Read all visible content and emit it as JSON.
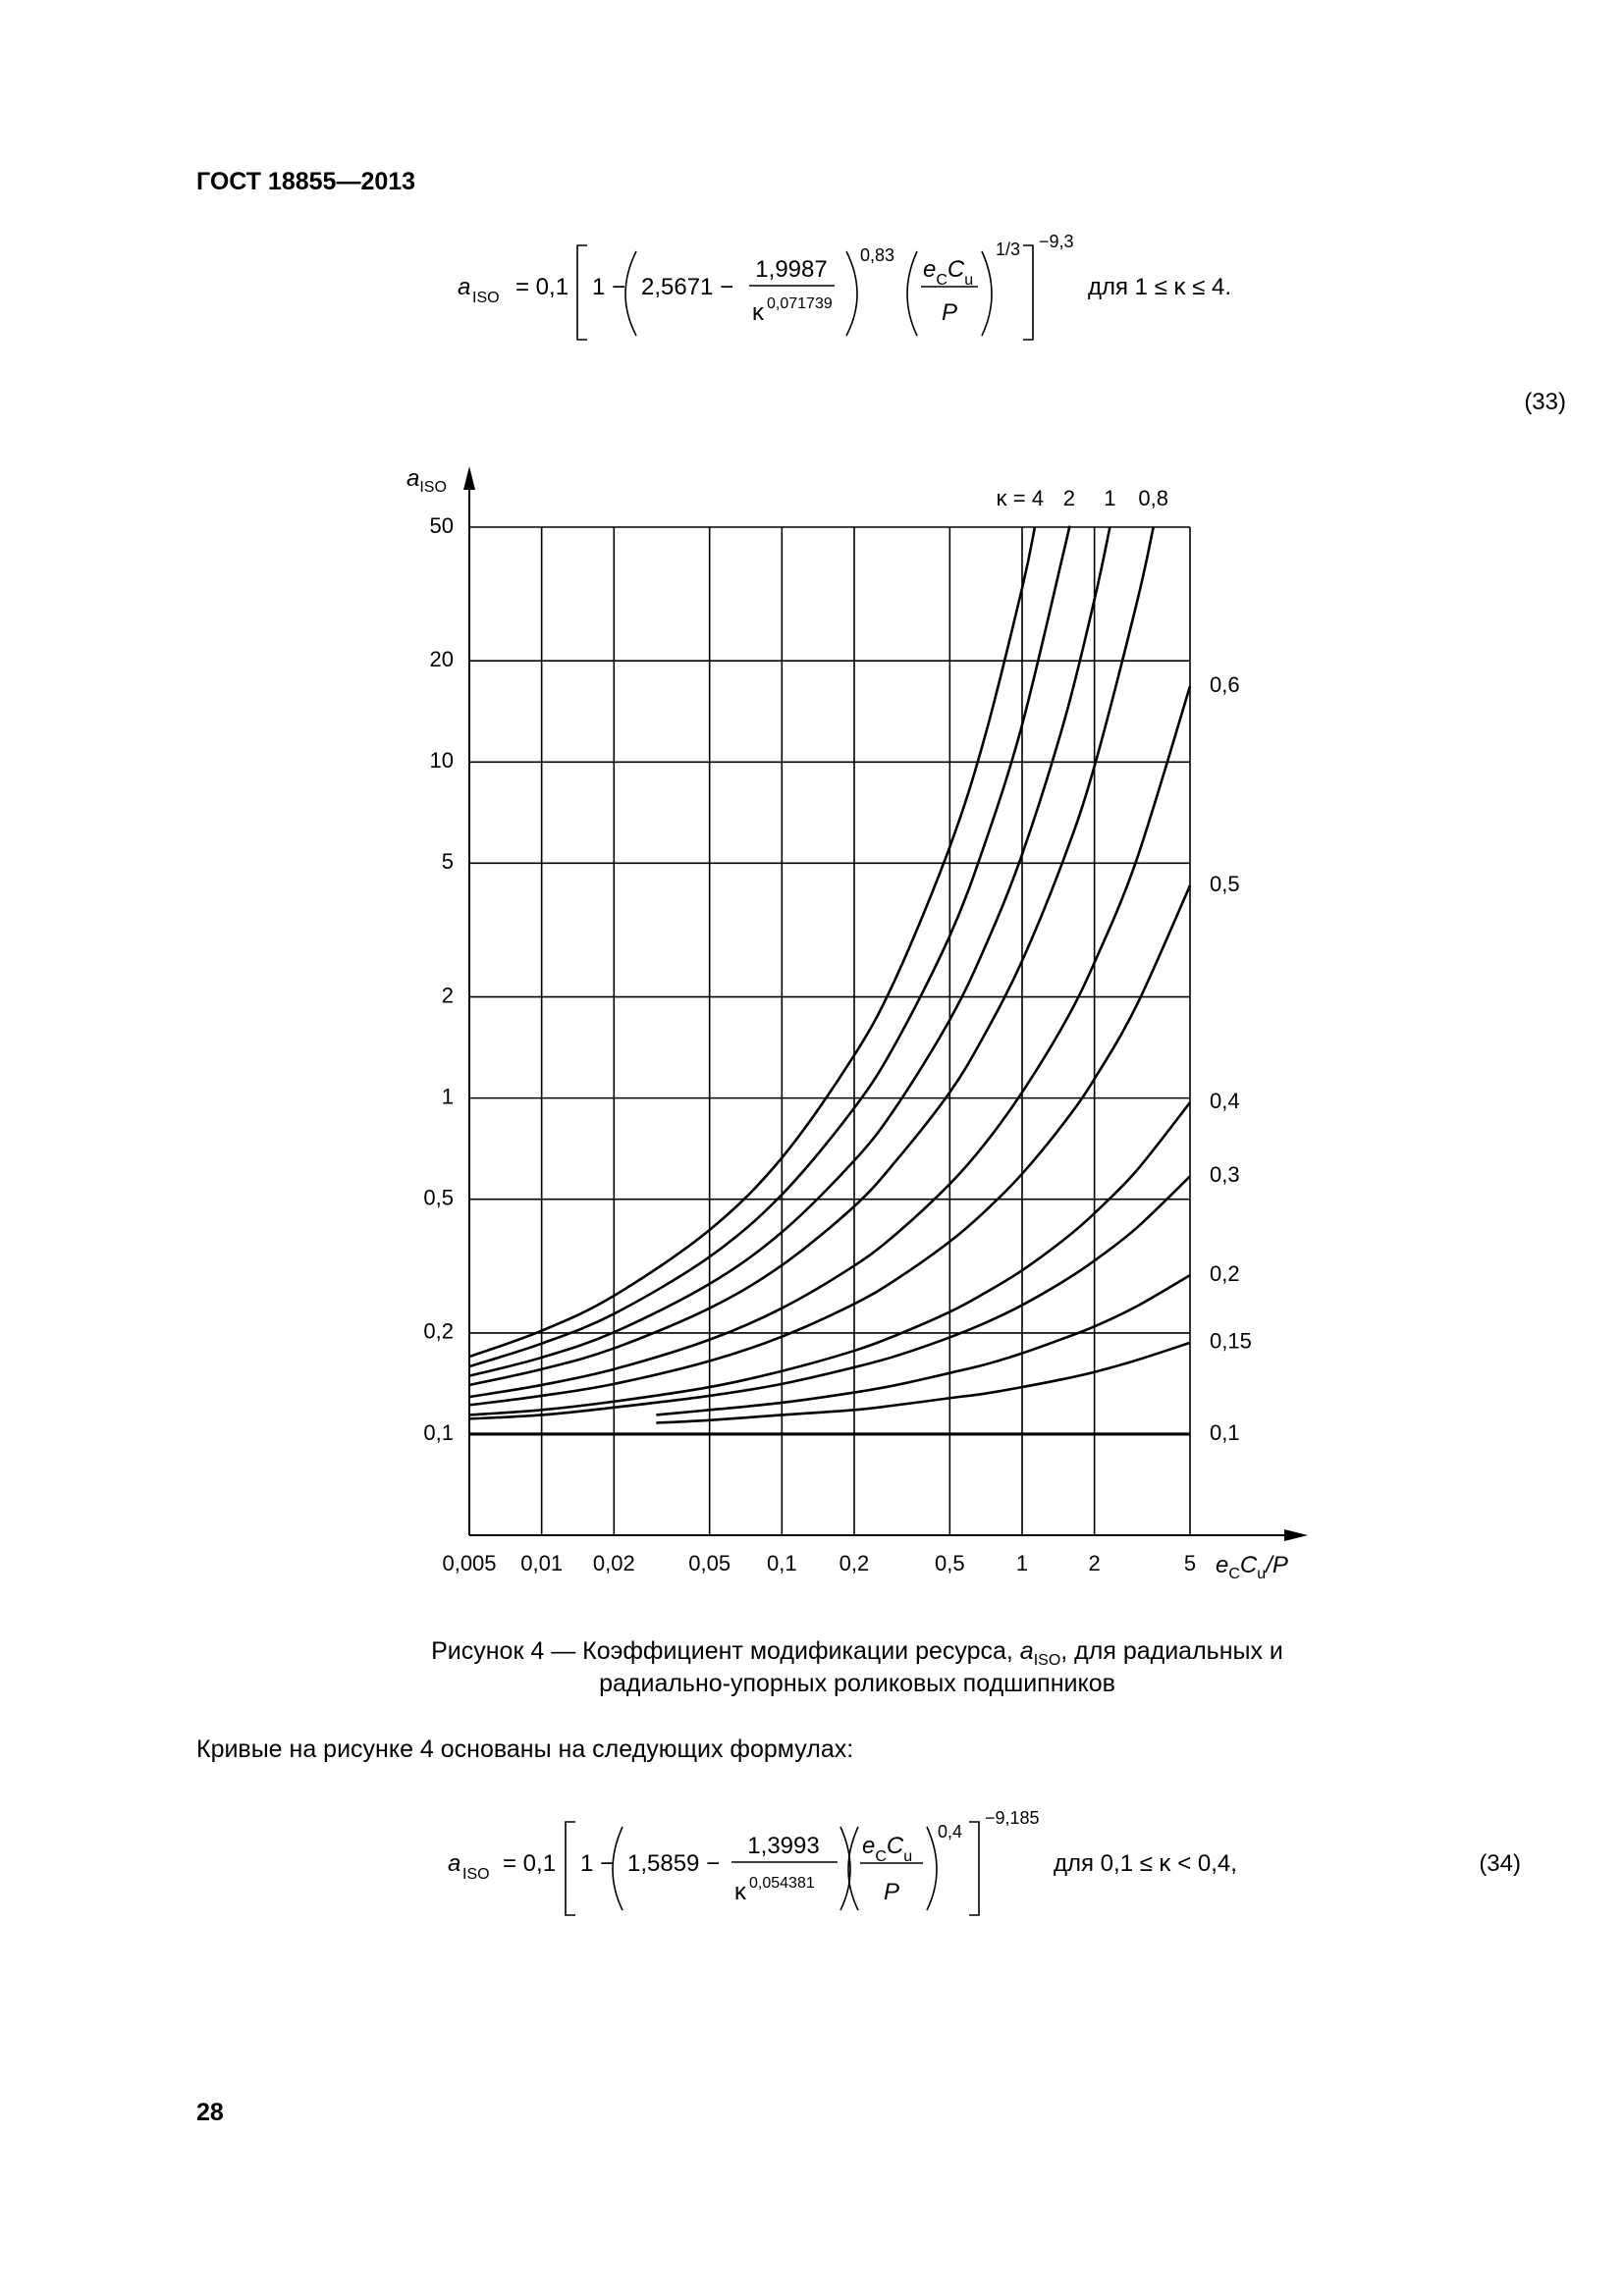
{
  "header": {
    "title": "ГОСТ 18855—2013"
  },
  "formula_33": {
    "lhs": "a",
    "lhs_sub": "ISO",
    "eq": "= 0,1",
    "one_minus": "1 −",
    "const": "2,5671 −",
    "num": "1,9987",
    "den": "κ",
    "den_exp": "0,071739",
    "exp1": "0,83",
    "frac_num": [
      "e",
      "C",
      "C",
      "u"
    ],
    "frac_den": "P",
    "exp2": "1/3",
    "exp_outer": "−9,3",
    "cond": "для  1 ≤ κ ≤ 4.",
    "number": "(33)"
  },
  "chart_data": {
    "type": "line",
    "xlabel": [
      "e",
      "C",
      "C",
      "u",
      "/P"
    ],
    "ylabel": [
      "a",
      "ISO"
    ],
    "log_x": true,
    "log_y": true,
    "grid": true,
    "xlim": [
      0.005,
      5
    ],
    "ylim": [
      0.05,
      50
    ],
    "xticks": [
      {
        "value": 0.005,
        "label": "0,005"
      },
      {
        "value": 0.01,
        "label": "0,01"
      },
      {
        "value": 0.02,
        "label": "0,02"
      },
      {
        "value": 0.05,
        "label": "0,05"
      },
      {
        "value": 0.1,
        "label": "0,1"
      },
      {
        "value": 0.2,
        "label": "0,2"
      },
      {
        "value": 0.5,
        "label": "0,5"
      },
      1,
      2,
      5
    ],
    "yticks": [
      {
        "value": 0.1,
        "label": "0,1"
      },
      {
        "value": 0.2,
        "label": "0,2"
      },
      {
        "value": 0.5,
        "label": "0,5"
      },
      1,
      2,
      5,
      10,
      20,
      50
    ],
    "series": [
      {
        "name": "κ = 4",
        "color": "#000000",
        "x": [
          0.005,
          0.01,
          0.02,
          0.05,
          0.1,
          0.2,
          0.3,
          0.5,
          0.7,
          1,
          1.13
        ],
        "values": [
          0.17,
          0.203,
          0.258,
          0.405,
          0.664,
          1.34,
          2.3,
          5.59,
          11.9,
          32.9,
          50
        ]
      },
      {
        "name": "2",
        "color": "#000000",
        "x": [
          0.005,
          0.01,
          0.02,
          0.05,
          0.1,
          0.2,
          0.3,
          0.5,
          0.7,
          1,
          1.5,
          1.57
        ],
        "values": [
          0.159,
          0.186,
          0.228,
          0.337,
          0.516,
          0.934,
          1.47,
          3.04,
          5.72,
          12.9,
          43.1,
          50
        ]
      },
      {
        "name": "1",
        "color": "#000000",
        "x": [
          0.005,
          0.01,
          0.02,
          0.05,
          0.1,
          0.2,
          0.3,
          0.5,
          0.7,
          1,
          1.5,
          2,
          2.32
        ],
        "values": [
          0.149,
          0.169,
          0.201,
          0.28,
          0.399,
          0.651,
          0.945,
          1.71,
          2.81,
          5.31,
          13.3,
          30.4,
          50
        ]
      },
      {
        "name": "0,8",
        "color": "#000000",
        "x": [
          0.005,
          0.01,
          0.02,
          0.05,
          0.1,
          0.2,
          0.3,
          0.5,
          0.7,
          1,
          1.5,
          2,
          3,
          3.52
        ],
        "values": [
          0.14,
          0.156,
          0.18,
          0.237,
          0.318,
          0.476,
          0.653,
          1.04,
          1.55,
          2.56,
          5.21,
          9.71,
          29.7,
          50
        ]
      },
      {
        "name": "0,6",
        "color": "#000000",
        "x": [
          0.005,
          0.01,
          0.02,
          0.05,
          0.1,
          0.2,
          0.3,
          0.5,
          0.7,
          1,
          1.5,
          2,
          3,
          5
        ],
        "values": [
          0.129,
          0.14,
          0.156,
          0.191,
          0.237,
          0.317,
          0.395,
          0.555,
          0.731,
          1.04,
          1.67,
          2.53,
          5.13,
          16.8
        ]
      },
      {
        "name": "0,5",
        "color": "#000000",
        "x": [
          0.005,
          0.01,
          0.02,
          0.05,
          0.1,
          0.2,
          0.3,
          0.5,
          0.7,
          1,
          1.5,
          2,
          3,
          5
        ],
        "values": [
          0.122,
          0.13,
          0.141,
          0.165,
          0.195,
          0.244,
          0.289,
          0.374,
          0.46,
          0.595,
          0.847,
          1.14,
          1.89,
          4.29
        ]
      },
      {
        "name": "0,4",
        "color": "#000000",
        "x": [
          0.005,
          0.01,
          0.02,
          0.05,
          0.1,
          0.2,
          0.3,
          0.5,
          0.7,
          1,
          1.5,
          2,
          3,
          5
        ],
        "values": [
          0.114,
          0.118,
          0.125,
          0.138,
          0.154,
          0.177,
          0.197,
          0.231,
          0.263,
          0.307,
          0.38,
          0.454,
          0.609,
          0.97
        ]
      },
      {
        "name": "0,3",
        "color": "#000000",
        "x": [
          0.005,
          0.01,
          0.02,
          0.05,
          0.1,
          0.2,
          0.3,
          0.5,
          0.7,
          1,
          1.5,
          2,
          3,
          5
        ],
        "values": [
          0.111,
          0.114,
          0.12,
          0.13,
          0.141,
          0.158,
          0.171,
          0.194,
          0.214,
          0.242,
          0.286,
          0.328,
          0.411,
          0.585
        ]
      },
      {
        "name": "0,2",
        "color": "#000000",
        "x": [
          0.03,
          0.05,
          0.1,
          0.2,
          0.3,
          0.5,
          0.7,
          1,
          1.5,
          2,
          3,
          5
        ],
        "values": [
          0.114,
          0.118,
          0.124,
          0.133,
          0.14,
          0.152,
          0.161,
          0.174,
          0.193,
          0.209,
          0.24,
          0.297
        ]
      },
      {
        "name": "0,15",
        "color": "#000000",
        "x": [
          0.03,
          0.05,
          0.1,
          0.2,
          0.3,
          0.5,
          0.7,
          1,
          1.5,
          2,
          3,
          5
        ],
        "values": [
          0.108,
          0.11,
          0.114,
          0.118,
          0.122,
          0.128,
          0.132,
          0.138,
          0.146,
          0.153,
          0.166,
          0.187
        ]
      },
      {
        "name": "0,1",
        "color": "#000000",
        "x": [
          0.005,
          5
        ],
        "values": [
          0.1,
          0.1
        ]
      }
    ]
  },
  "caption": {
    "line1_start": "Рисунок 4 — Коэффициент модификации ресурса, ",
    "symbol": "a",
    "symbol_sub": "ISO",
    "line1_end": ", для радиальных и",
    "line2": "радиально-упорных роликовых подшипников"
  },
  "text": "Кривые на рисунке 4 основаны на следующих формулах:",
  "formula_34": {
    "lhs": "a",
    "lhs_sub": "ISO",
    "eq": "= 0,1",
    "one_minus": "1 −",
    "const": "1,5859 −",
    "num": "1,3993",
    "den": "κ",
    "den_exp": "0,054381",
    "frac_num": [
      "e",
      "C",
      "C",
      "u"
    ],
    "frac_den": "P",
    "exp1": "0,4",
    "exp_outer": "−9,185",
    "cond": "для  0,1 ≤ κ < 0,4,",
    "number": "(34)"
  },
  "page_number": "28"
}
